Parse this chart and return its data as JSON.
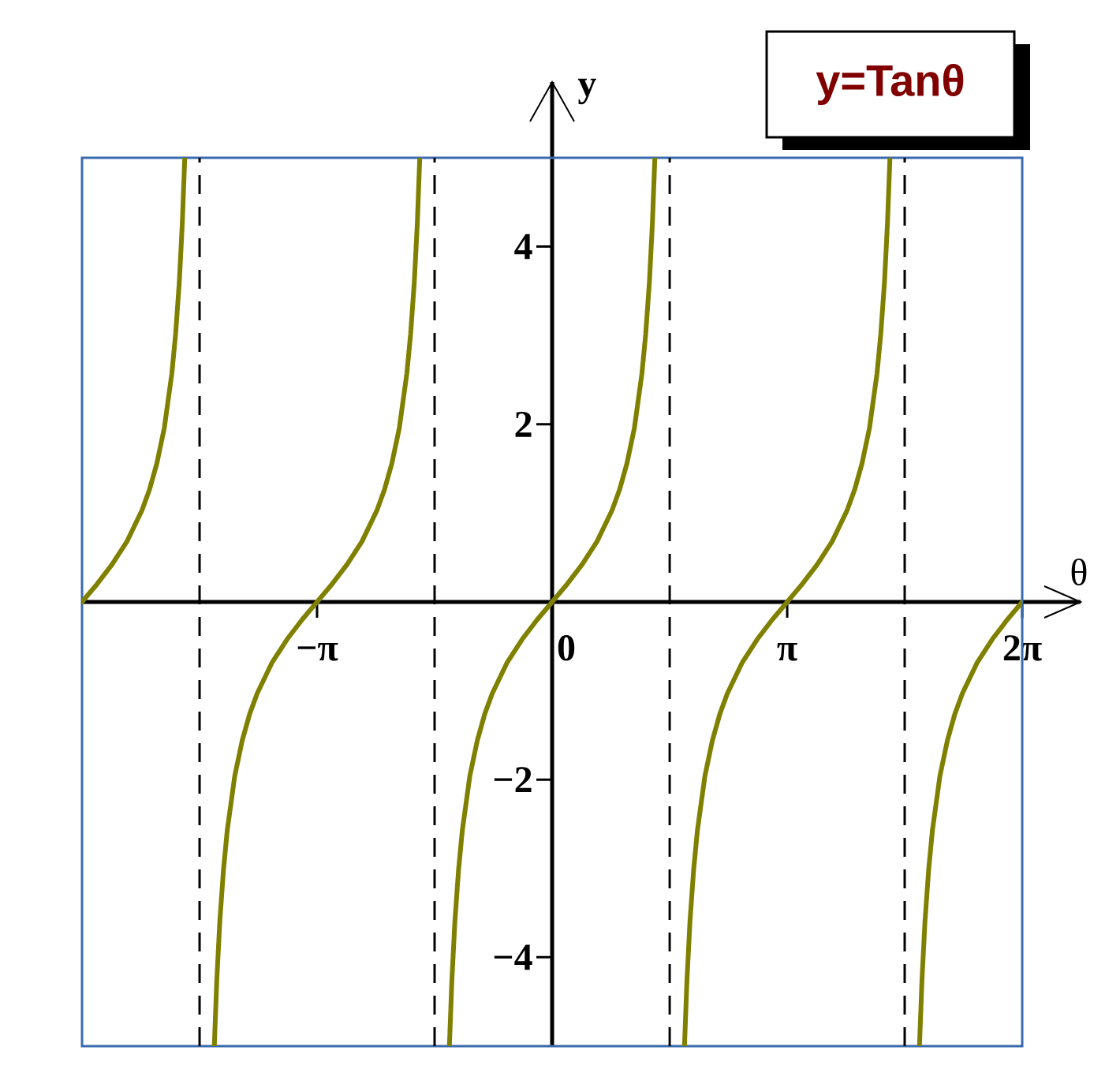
{
  "chart_data": {
    "type": "line",
    "title": "y=Tanθ",
    "xlabel": "θ",
    "ylabel": "y",
    "xlim": [
      -6.283,
      6.283
    ],
    "ylim": [
      -5,
      5
    ],
    "xticks": [
      {
        "value": -3.142,
        "label": "−π"
      },
      {
        "value": 0,
        "label": "0"
      },
      {
        "value": 3.142,
        "label": "π"
      },
      {
        "value": 6.283,
        "label": "2π"
      }
    ],
    "yticks": [
      {
        "value": -4,
        "label": "−4"
      },
      {
        "value": -2,
        "label": "−2"
      },
      2,
      4
    ],
    "ref_lines": [
      {
        "axis": "x",
        "value": -4.712,
        "color": "#000000",
        "line_style": "dashed"
      },
      {
        "axis": "x",
        "value": -1.571,
        "color": "#000000",
        "line_style": "dashed"
      },
      {
        "axis": "x",
        "value": 1.571,
        "color": "#000000",
        "line_style": "dashed"
      },
      {
        "axis": "x",
        "value": 4.712,
        "color": "#000000",
        "line_style": "dashed"
      }
    ],
    "series": [
      {
        "color": "#808000",
        "x": [
          -6.283,
          -6.083,
          -5.883,
          -5.683,
          -5.483,
          -5.383,
          -5.283,
          -5.183,
          -5.083,
          -5.033,
          -4.983,
          -4.943,
          -4.91
        ],
        "values": [
          0,
          0.2,
          0.42,
          0.68,
          1.03,
          1.26,
          1.56,
          1.96,
          2.57,
          3.01,
          3.6,
          4.26,
          5
        ]
      },
      {
        "color": "#808000",
        "x": [
          -4.515,
          -4.482,
          -4.442,
          -4.392,
          -4.342,
          -4.242,
          -4.142,
          -4.042,
          -3.942,
          -3.742,
          -3.542,
          -3.342,
          -3.142,
          -2.942,
          -2.742,
          -2.542,
          -2.342,
          -2.242,
          -2.142,
          -2.042,
          -1.942,
          -1.892,
          -1.842,
          -1.802,
          -1.769
        ],
        "values": [
          -5,
          -4.26,
          -3.6,
          -3.01,
          -2.57,
          -1.96,
          -1.56,
          -1.26,
          -1.03,
          -0.68,
          -0.42,
          -0.2,
          0,
          0.2,
          0.42,
          0.68,
          1.03,
          1.26,
          1.56,
          1.96,
          2.57,
          3.01,
          3.6,
          4.26,
          5
        ]
      },
      {
        "color": "#808000",
        "x": [
          -1.373,
          -1.34,
          -1.3,
          -1.25,
          -1.2,
          -1.1,
          -1.0,
          -0.9,
          -0.8,
          -0.6,
          -0.4,
          -0.2,
          0,
          0.2,
          0.4,
          0.6,
          0.8,
          0.9,
          1.0,
          1.1,
          1.2,
          1.25,
          1.3,
          1.34,
          1.373
        ],
        "values": [
          -5,
          -4.26,
          -3.6,
          -3.01,
          -2.57,
          -1.96,
          -1.56,
          -1.26,
          -1.03,
          -0.68,
          -0.42,
          -0.2,
          0,
          0.2,
          0.42,
          0.68,
          1.03,
          1.26,
          1.56,
          1.96,
          2.57,
          3.01,
          3.6,
          4.26,
          5
        ]
      },
      {
        "color": "#808000",
        "x": [
          1.769,
          1.802,
          1.842,
          1.892,
          1.942,
          2.042,
          2.142,
          2.242,
          2.342,
          2.542,
          2.742,
          2.942,
          3.142,
          3.342,
          3.542,
          3.742,
          3.942,
          4.042,
          4.142,
          4.242,
          4.342,
          4.392,
          4.442,
          4.482,
          4.515
        ],
        "values": [
          -5,
          -4.26,
          -3.6,
          -3.01,
          -2.57,
          -1.96,
          -1.56,
          -1.26,
          -1.03,
          -0.68,
          -0.42,
          -0.2,
          0,
          0.2,
          0.42,
          0.68,
          1.03,
          1.26,
          1.56,
          1.96,
          2.57,
          3.01,
          3.6,
          4.26,
          5
        ]
      },
      {
        "color": "#808000",
        "x": [
          4.91,
          4.943,
          4.983,
          5.033,
          5.083,
          5.183,
          5.283,
          5.383,
          5.483,
          5.683,
          5.883,
          6.083,
          6.283
        ],
        "values": [
          -5,
          -4.26,
          -3.6,
          -3.01,
          -2.57,
          -1.96,
          -1.56,
          -1.26,
          -1.03,
          -0.68,
          -0.42,
          -0.2,
          0
        ]
      }
    ]
  }
}
